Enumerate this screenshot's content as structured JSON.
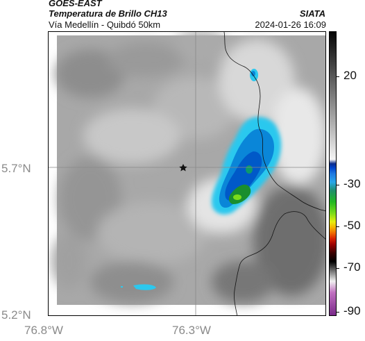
{
  "header": {
    "satellite": "GOES-EAST",
    "product": "Temperatura de Brillo CH13",
    "region": "Vía Medellín - Quibdó 50km",
    "brand": "SIATA",
    "timestamp": "2024-01-26 16:09"
  },
  "axes": {
    "lat_labels": [
      "5.7°N",
      "5.2°N"
    ],
    "lon_labels": [
      "76.8°W",
      "76.3°W"
    ]
  },
  "colorbar": {
    "ticks": [
      "20",
      "-30",
      "-50",
      "-70",
      "-90"
    ]
  },
  "map": {
    "marker_icon": "star-icon",
    "colors": {
      "cold_core": "#1a8e2e",
      "mid": "#0059c8",
      "edge": "#2cc8ee"
    }
  }
}
